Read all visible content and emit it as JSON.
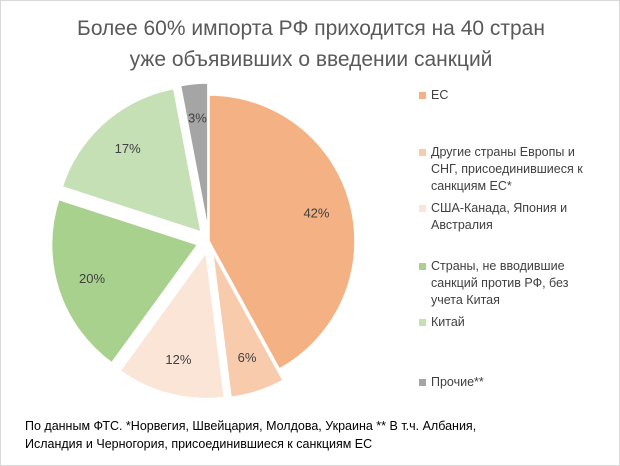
{
  "chart_data": {
    "type": "pie",
    "title_lines": [
      "Более 60% импорта РФ приходится на 40 стран",
      "уже объявивших о введении санкций"
    ],
    "slices": [
      {
        "label": "ЕС",
        "value": 42,
        "data_label": "42%",
        "color": "#f4b183",
        "exploded": false
      },
      {
        "label": "Другие страны Европы и СНГ, присоединившиеся к санкциям ЕС*",
        "value": 6,
        "data_label": "6%",
        "color": "#f8cbad",
        "exploded": true
      },
      {
        "label": "США-Канада, Япония и Австралия",
        "value": 12,
        "data_label": "12%",
        "color": "#fbe5d6",
        "exploded": true
      },
      {
        "label": "Страны, не вводившие санкций против РФ, без учета Китая",
        "value": 20,
        "data_label": "20%",
        "color": "#a9d18e",
        "exploded": true
      },
      {
        "label": "Китай",
        "value": 17,
        "data_label": "17%",
        "color": "#c5e0b4",
        "exploded": true
      },
      {
        "label": "Прочие**",
        "value": 3,
        "data_label": "3%",
        "color": "#a5a5a5",
        "exploded": true
      }
    ],
    "legend_position": "right"
  },
  "footnote": [
    "По данным ФТС. *Норвегия, Швейцария, Молдова, Украина ** В т.ч. Албания,",
    "Исландия и Черногория, присоединившиеся к санкциям ЕС"
  ]
}
